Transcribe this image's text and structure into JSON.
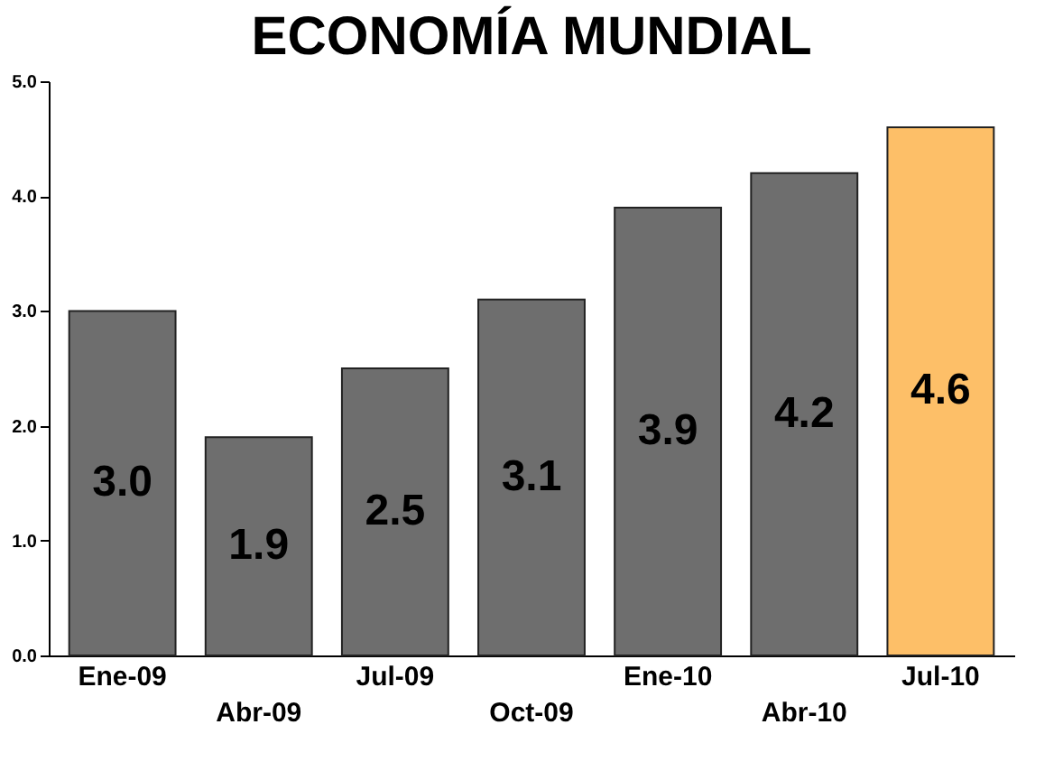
{
  "chart_data": {
    "type": "bar",
    "title": "ECONOMÍA MUNDIAL",
    "categories": [
      "Ene-09",
      "Abr-09",
      "Jul-09",
      "Oct-09",
      "Ene-10",
      "Abr-10",
      "Jul-10"
    ],
    "values": [
      3.0,
      1.9,
      2.5,
      3.1,
      3.9,
      4.2,
      4.6
    ],
    "colors": [
      "#6e6e6e",
      "#6e6e6e",
      "#6e6e6e",
      "#6e6e6e",
      "#6e6e6e",
      "#6e6e6e",
      "#fdbf68"
    ],
    "ylim": [
      0,
      5
    ],
    "yticks": [
      {
        "value": 0,
        "label": "0.0"
      },
      {
        "value": 1,
        "label": "1.0"
      },
      {
        "value": 2,
        "label": "2.0"
      },
      {
        "value": 3,
        "label": "3.0"
      },
      {
        "value": 4,
        "label": "4.0"
      },
      {
        "value": 5,
        "label": "5.0"
      }
    ],
    "value_labels": [
      "3.0",
      "1.9",
      "2.5",
      "3.1",
      "3.9",
      "4.2",
      "4.6"
    ],
    "grid": false
  }
}
